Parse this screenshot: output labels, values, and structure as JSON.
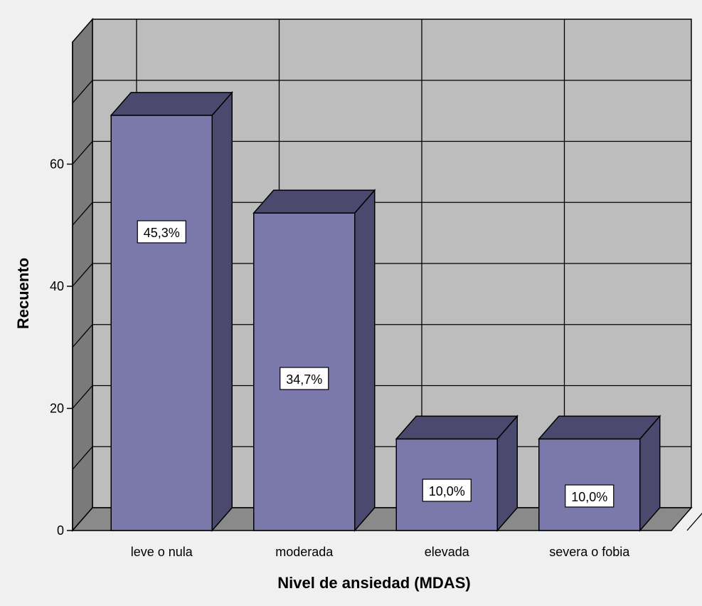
{
  "chart_data": {
    "type": "bar",
    "style": "3d",
    "title": "",
    "xlabel": "Nivel de ansiedad (MDAS)",
    "ylabel": "Recuento",
    "categories": [
      "leve o nula",
      "moderada",
      "elevada",
      "severa o fobia"
    ],
    "values": [
      68,
      52,
      15,
      15
    ],
    "data_labels": [
      "45,3%",
      "34,7%",
      "10,0%",
      "10,0%"
    ],
    "ylim": [
      0,
      80
    ],
    "yticks": [
      0,
      20,
      40,
      60
    ],
    "grid": true,
    "legend": "none",
    "colors": {
      "background": "#f0f0f0",
      "plot_wall": "#bdbdbd",
      "side_wall": "#7a7a7a",
      "floor": "#8a8a8a",
      "grid": "#000000",
      "bar_front": "#7b78ab",
      "bar_top": "#4b4a6e",
      "bar_side": "#4b4a6e",
      "label_box": "#ffffff"
    }
  }
}
